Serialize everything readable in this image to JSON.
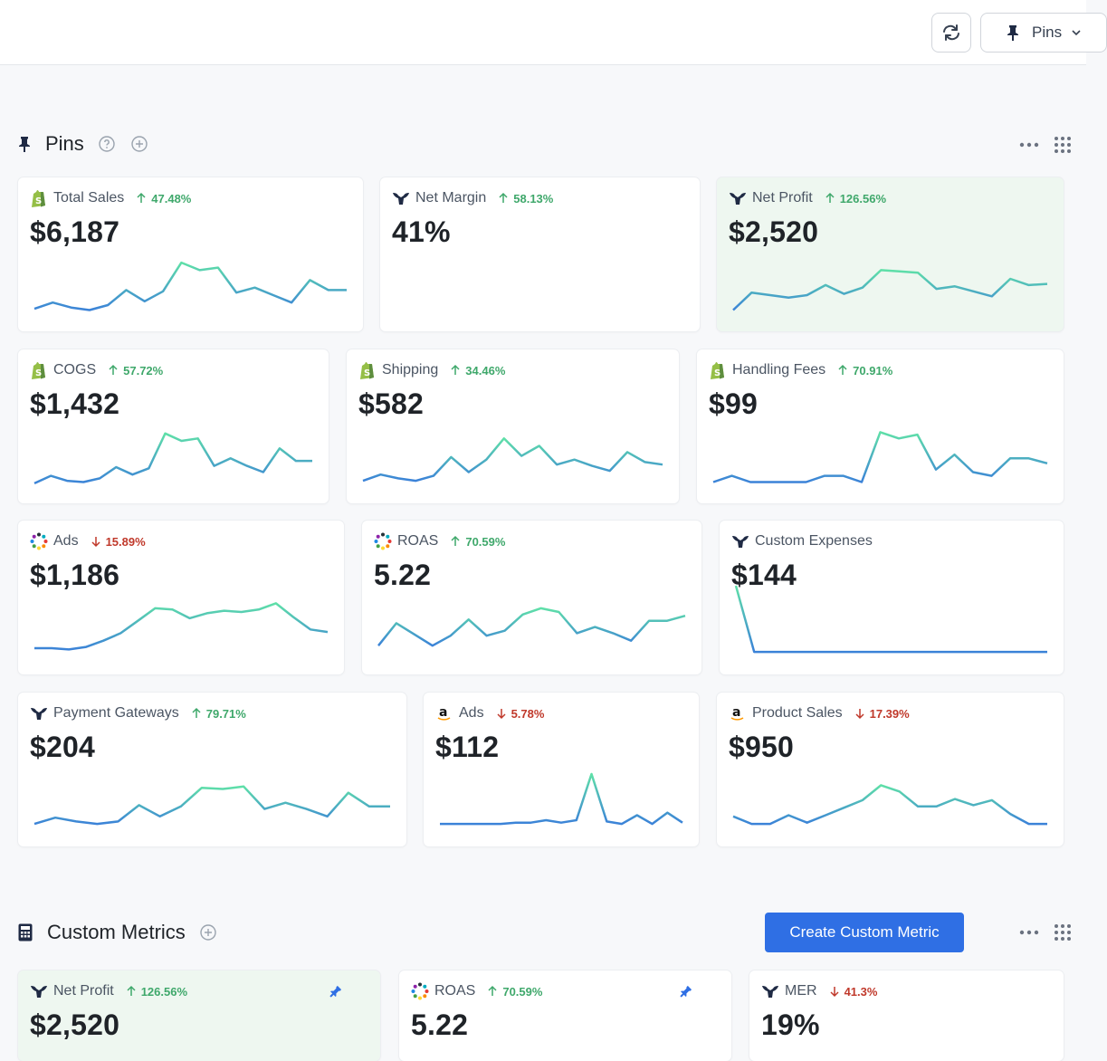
{
  "topbar": {
    "pins_label": "Pins"
  },
  "pins_section": {
    "title": "Pins"
  },
  "cards": [
    {
      "id": "total-sales",
      "title": "Total Sales",
      "icon": "shopify-icon",
      "change": "47.48%",
      "dir": "up",
      "value": "$6,187",
      "highlight": false,
      "spark": [
        5,
        10,
        6,
        4,
        8,
        20,
        11,
        19,
        42,
        36,
        38,
        18,
        22,
        16,
        10,
        28,
        20,
        20
      ]
    },
    {
      "id": "net-margin",
      "title": "Net Margin",
      "icon": "triple-whale-icon",
      "change": "58.13%",
      "dir": "up",
      "value": "41%",
      "highlight": false,
      "spark": []
    },
    {
      "id": "net-profit",
      "title": "Net Profit",
      "icon": "triple-whale-icon",
      "change": "126.56%",
      "dir": "up",
      "value": "$2,520",
      "highlight": true,
      "spark": [
        4,
        18,
        16,
        14,
        16,
        24,
        17,
        22,
        36,
        35,
        34,
        21,
        23,
        19,
        15,
        29,
        24,
        25
      ]
    },
    {
      "id": "cogs",
      "title": "COGS",
      "icon": "shopify-icon",
      "change": "57.72%",
      "dir": "up",
      "value": "$1,432",
      "highlight": false,
      "spark": [
        3,
        9,
        5,
        4,
        7,
        16,
        10,
        15,
        43,
        37,
        39,
        17,
        23,
        17,
        12,
        31,
        21,
        21
      ]
    },
    {
      "id": "shipping",
      "title": "Shipping",
      "icon": "shopify-icon",
      "change": "34.46%",
      "dir": "up",
      "value": "$582",
      "highlight": false,
      "spark": [
        5,
        10,
        7,
        5,
        9,
        24,
        12,
        22,
        39,
        25,
        33,
        18,
        22,
        17,
        13,
        28,
        20,
        18
      ]
    },
    {
      "id": "handling-fees",
      "title": "Handling Fees",
      "icon": "shopify-icon",
      "change": "70.91%",
      "dir": "up",
      "value": "$99",
      "highlight": false,
      "spark": [
        4,
        9,
        4,
        4,
        4,
        4,
        9,
        9,
        4,
        44,
        39,
        42,
        14,
        26,
        12,
        9,
        23,
        23,
        19
      ]
    },
    {
      "id": "ads-meta",
      "title": "Ads",
      "icon": "dot-ring-icon",
      "change": "15.89%",
      "dir": "down",
      "value": "$1,186",
      "highlight": false,
      "spark": [
        8,
        8,
        7,
        9,
        14,
        20,
        30,
        40,
        39,
        32,
        36,
        38,
        37,
        39,
        44,
        33,
        23,
        21
      ]
    },
    {
      "id": "roas",
      "title": "ROAS",
      "icon": "dot-ring-icon",
      "change": "70.59%",
      "dir": "up",
      "value": "5.22",
      "highlight": false,
      "spark": [
        10,
        28,
        19,
        10,
        18,
        31,
        18,
        22,
        35,
        40,
        37,
        20,
        25,
        20,
        14,
        30,
        30,
        34
      ]
    },
    {
      "id": "custom-expenses",
      "title": "Custom Expenses",
      "icon": "triple-whale-icon",
      "change": "",
      "dir": "none",
      "value": "$144",
      "highlight": false,
      "spark": [
        58,
        5,
        5,
        5,
        5,
        5,
        5,
        5,
        5,
        5,
        5,
        5,
        5,
        5,
        5,
        5,
        5,
        5
      ]
    },
    {
      "id": "payment-gateways",
      "title": "Payment Gateways",
      "icon": "triple-whale-icon",
      "change": "79.71%",
      "dir": "up",
      "value": "$204",
      "highlight": false,
      "spark": [
        5,
        10,
        7,
        5,
        7,
        20,
        11,
        19,
        34,
        33,
        35,
        17,
        22,
        17,
        11,
        30,
        19,
        19
      ]
    },
    {
      "id": "ads-amazon",
      "title": "Ads",
      "icon": "amazon-icon",
      "change": "5.78%",
      "dir": "down",
      "value": "$112",
      "highlight": false,
      "spark": [
        5,
        5,
        5,
        5,
        5,
        6,
        6,
        8,
        6,
        8,
        45,
        7,
        5,
        12,
        5,
        14,
        6
      ]
    },
    {
      "id": "product-sales",
      "title": "Product Sales",
      "icon": "amazon-icon",
      "change": "17.39%",
      "dir": "down",
      "value": "$950",
      "highlight": false,
      "spark": [
        11,
        5,
        5,
        12,
        6,
        12,
        18,
        24,
        36,
        31,
        19,
        19,
        25,
        20,
        24,
        13,
        5,
        5
      ]
    }
  ],
  "custom_section": {
    "title": "Custom Metrics",
    "create_label": "Create Custom Metric"
  },
  "custom_cards": [
    {
      "id": "cm-net-profit",
      "title": "Net Profit",
      "icon": "triple-whale-icon",
      "change": "126.56%",
      "dir": "up",
      "value": "$2,520",
      "highlight": true
    },
    {
      "id": "cm-roas",
      "title": "ROAS",
      "icon": "dot-ring-icon",
      "change": "70.59%",
      "dir": "up",
      "value": "5.22",
      "highlight": false
    },
    {
      "id": "cm-mer",
      "title": "MER",
      "icon": "triple-whale-icon",
      "change": "41.3%",
      "dir": "down",
      "value": "19%",
      "highlight": false
    }
  ],
  "colors": {
    "accent": "#2f6fe4",
    "up": "#3fa86b",
    "down": "#c0392b",
    "spark_start": "#3b82d8",
    "spark_end": "#5fe0a8"
  }
}
